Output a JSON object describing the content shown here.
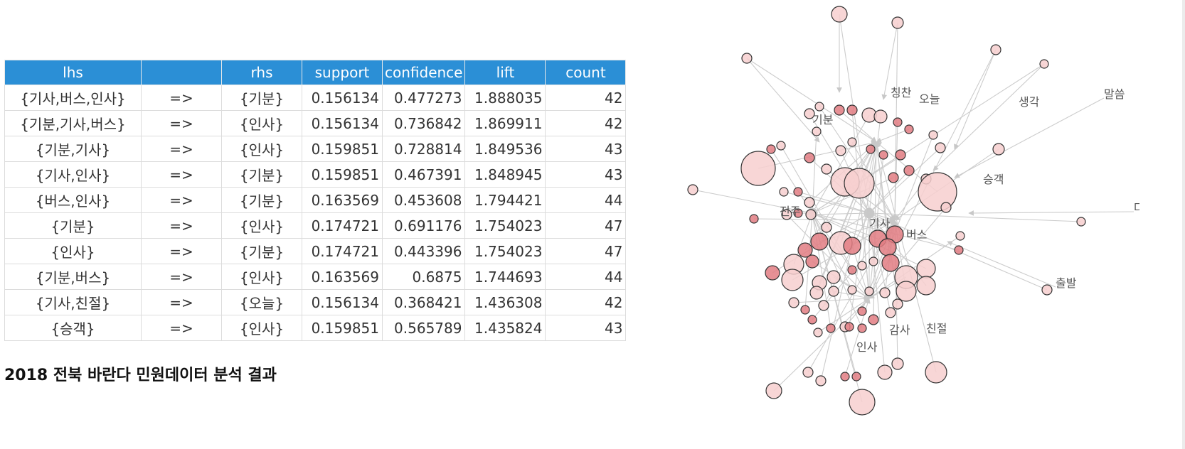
{
  "table": {
    "columns": [
      "lhs",
      "",
      "rhs",
      "support",
      "confidence",
      "lift",
      "count"
    ],
    "rows": [
      {
        "lhs": "{기사,버스,인사}",
        "arrow": "=>",
        "rhs": "{기분}",
        "support": "0.156134",
        "confidence": "0.477273",
        "lift": "1.888035",
        "count": "42"
      },
      {
        "lhs": "{기분,기사,버스}",
        "arrow": "=>",
        "rhs": "{인사}",
        "support": "0.156134",
        "confidence": "0.736842",
        "lift": "1.869911",
        "count": "42"
      },
      {
        "lhs": "{기분,기사}",
        "arrow": "=>",
        "rhs": "{인사}",
        "support": "0.159851",
        "confidence": "0.728814",
        "lift": "1.849536",
        "count": "43"
      },
      {
        "lhs": "{기사,인사}",
        "arrow": "=>",
        "rhs": "{기분}",
        "support": "0.159851",
        "confidence": "0.467391",
        "lift": "1.848945",
        "count": "43"
      },
      {
        "lhs": "{버스,인사}",
        "arrow": "=>",
        "rhs": "{기분}",
        "support": "0.163569",
        "confidence": "0.453608",
        "lift": "1.794421",
        "count": "44"
      },
      {
        "lhs": "{기분}",
        "arrow": "=>",
        "rhs": "{인사}",
        "support": "0.174721",
        "confidence": "0.691176",
        "lift": "1.754023",
        "count": "47"
      },
      {
        "lhs": "{인사}",
        "arrow": "=>",
        "rhs": "{기분}",
        "support": "0.174721",
        "confidence": "0.443396",
        "lift": "1.754023",
        "count": "47"
      },
      {
        "lhs": "{기분,버스}",
        "arrow": "=>",
        "rhs": "{인사}",
        "support": "0.163569",
        "confidence": "0.6875",
        "lift": "1.744693",
        "count": "44"
      },
      {
        "lhs": "{기사,친절}",
        "arrow": "=>",
        "rhs": "{오늘}",
        "support": "0.156134",
        "confidence": "0.368421",
        "lift": "1.436308",
        "count": "42"
      },
      {
        "lhs": "{승객}",
        "arrow": "=>",
        "rhs": "{인사}",
        "support": "0.159851",
        "confidence": "0.565789",
        "lift": "1.435824",
        "count": "43"
      }
    ]
  },
  "caption": "2018 전북 바란다 민원데이터 분석 결과",
  "graph": {
    "labels": [
      "칭찬",
      "오늘",
      "생각",
      "말씀",
      "기분",
      "승객",
      "다시",
      "전주",
      "기사",
      "버스",
      "출발",
      "감사",
      "친절",
      "인사"
    ]
  },
  "colors": {
    "header_bg": "#2b8fd6",
    "node_fill_light": "#f7cfcf",
    "node_fill_dark": "#e27d82",
    "edge": "#cccccc"
  }
}
